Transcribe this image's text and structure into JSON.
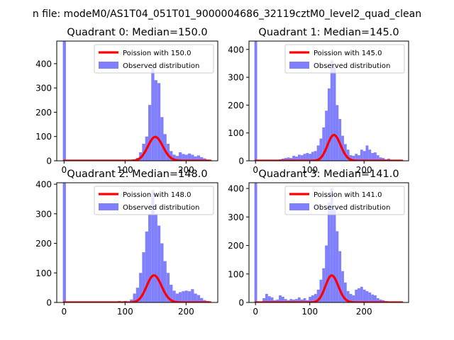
{
  "figure": {
    "suptitle": "n file: modeM0/AS1T04_051T01_9000004686_32119cztM0_level2_quad_clean"
  },
  "colors": {
    "poisson_line": "#ff0000",
    "observed_bars": "#8080ff",
    "axes": "#000000",
    "background": "#ffffff"
  },
  "chart_data": [
    {
      "type": "bar",
      "title": "Quadrant 0: Median=150.0",
      "xlim": [
        -12,
        252
      ],
      "ylim": [
        0,
        493
      ],
      "xticks": [
        0,
        100,
        200
      ],
      "yticks": [
        0,
        100,
        200,
        300,
        400
      ],
      "legend_placement": "upper-right",
      "series": [
        {
          "name": "Poission with 150.0",
          "kind": "line",
          "color": "#ff0000",
          "lambda": 150.0,
          "scale": 3020,
          "x_range": [
            0,
            240
          ]
        },
        {
          "name": "Observed distribution",
          "kind": "hist",
          "color": "#8080ff",
          "bins": [
            [
              -2,
              3,
              493
            ],
            [
              3,
              8,
              0
            ],
            [
              83,
              88,
              1
            ],
            [
              103,
              108,
              1
            ],
            [
              113,
              118,
              3
            ],
            [
              118,
              123,
              12
            ],
            [
              123,
              128,
              35
            ],
            [
              128,
              133,
              70
            ],
            [
              133,
              138,
              100
            ],
            [
              138,
              143,
              230
            ],
            [
              143,
              148,
              390
            ],
            [
              148,
              153,
              332
            ],
            [
              153,
              158,
              320
            ],
            [
              158,
              163,
              180
            ],
            [
              163,
              168,
              110
            ],
            [
              168,
              173,
              70
            ],
            [
              173,
              178,
              40
            ],
            [
              178,
              183,
              25
            ],
            [
              183,
              188,
              20
            ],
            [
              188,
              193,
              35
            ],
            [
              193,
              198,
              28
            ],
            [
              198,
              203,
              25
            ],
            [
              203,
              208,
              30
            ],
            [
              208,
              213,
              25
            ],
            [
              213,
              218,
              18
            ],
            [
              218,
              223,
              22
            ],
            [
              223,
              228,
              15
            ],
            [
              228,
              233,
              10
            ],
            [
              233,
              238,
              5
            ],
            [
              238,
              243,
              2
            ]
          ]
        }
      ]
    },
    {
      "type": "bar",
      "title": "Quadrant 1: Median=145.0",
      "xlim": [
        -12,
        282
      ],
      "ylim": [
        0,
        430
      ],
      "xticks": [
        0,
        100,
        200
      ],
      "yticks": [
        0,
        100,
        200,
        300,
        400
      ],
      "legend_placement": "upper-right",
      "series": [
        {
          "name": "Poission with 145.0",
          "kind": "line",
          "color": "#ff0000",
          "lambda": 145.0,
          "scale": 2800,
          "x_range": [
            0,
            270
          ]
        },
        {
          "name": "Observed distribution",
          "kind": "hist",
          "color": "#8080ff",
          "bins": [
            [
              -2,
              3,
              430
            ],
            [
              43,
              48,
              5
            ],
            [
              48,
              53,
              8
            ],
            [
              53,
              58,
              10
            ],
            [
              58,
              63,
              12
            ],
            [
              63,
              68,
              10
            ],
            [
              68,
              73,
              18
            ],
            [
              73,
              78,
              15
            ],
            [
              78,
              83,
              22
            ],
            [
              83,
              88,
              20
            ],
            [
              88,
              93,
              25
            ],
            [
              93,
              98,
              28
            ],
            [
              98,
              103,
              25
            ],
            [
              103,
              108,
              32
            ],
            [
              108,
              113,
              35
            ],
            [
              113,
              118,
              55
            ],
            [
              118,
              123,
              80
            ],
            [
              123,
              128,
              120
            ],
            [
              128,
              133,
              180
            ],
            [
              133,
              138,
              260
            ],
            [
              138,
              143,
              360
            ],
            [
              143,
              148,
              340
            ],
            [
              148,
              153,
              200
            ],
            [
              153,
              158,
              150
            ],
            [
              158,
              163,
              90
            ],
            [
              163,
              168,
              60
            ],
            [
              168,
              173,
              40
            ],
            [
              173,
              178,
              20
            ],
            [
              178,
              183,
              18
            ],
            [
              183,
              188,
              25
            ],
            [
              188,
              193,
              20
            ],
            [
              193,
              198,
              40
            ],
            [
              198,
              203,
              35
            ],
            [
              203,
              208,
              55
            ],
            [
              208,
              213,
              40
            ],
            [
              213,
              218,
              28
            ],
            [
              218,
              223,
              30
            ],
            [
              223,
              228,
              20
            ],
            [
              228,
              233,
              12
            ],
            [
              233,
              238,
              10
            ],
            [
              238,
              243,
              5
            ],
            [
              243,
              248,
              8
            ],
            [
              248,
              253,
              4
            ]
          ]
        }
      ]
    },
    {
      "type": "bar",
      "title": "Quadrant 2: Median=148.0",
      "xlim": [
        -12,
        252
      ],
      "ylim": [
        0,
        405
      ],
      "xticks": [
        0,
        100,
        200
      ],
      "yticks": [
        0,
        100,
        200,
        300,
        400
      ],
      "legend_placement": "upper-right",
      "series": [
        {
          "name": "Poission with 148.0",
          "kind": "line",
          "color": "#ff0000",
          "lambda": 148.0,
          "scale": 2800,
          "x_range": [
            0,
            240
          ]
        },
        {
          "name": "Observed distribution",
          "kind": "hist",
          "color": "#8080ff",
          "bins": [
            [
              -2,
              3,
              405
            ],
            [
              48,
              53,
              2
            ],
            [
              73,
              78,
              3
            ],
            [
              88,
              93,
              5
            ],
            [
              98,
              103,
              5
            ],
            [
              108,
              113,
              10
            ],
            [
              113,
              118,
              30
            ],
            [
              118,
              123,
              50
            ],
            [
              123,
              128,
              100
            ],
            [
              128,
              133,
              170
            ],
            [
              133,
              138,
              240
            ],
            [
              138,
              143,
              300
            ],
            [
              143,
              148,
              380
            ],
            [
              148,
              153,
              300
            ],
            [
              153,
              158,
              260
            ],
            [
              158,
              163,
              200
            ],
            [
              163,
              168,
              140
            ],
            [
              168,
              173,
              100
            ],
            [
              173,
              178,
              60
            ],
            [
              178,
              183,
              40
            ],
            [
              183,
              188,
              30
            ],
            [
              188,
              193,
              35
            ],
            [
              193,
              198,
              38
            ],
            [
              198,
              203,
              40
            ],
            [
              203,
              208,
              38
            ],
            [
              208,
              213,
              45
            ],
            [
              213,
              218,
              30
            ],
            [
              218,
              223,
              25
            ],
            [
              223,
              228,
              15
            ],
            [
              228,
              233,
              8
            ],
            [
              233,
              238,
              5
            ]
          ]
        }
      ]
    },
    {
      "type": "bar",
      "title": "Quadrant 3: Median=141.0",
      "xlim": [
        -12,
        282
      ],
      "ylim": [
        0,
        420
      ],
      "xticks": [
        0,
        100,
        200
      ],
      "yticks": [
        0,
        100,
        200,
        300,
        400
      ],
      "legend_placement": "upper-right",
      "series": [
        {
          "name": "Poission with 141.0",
          "kind": "line",
          "color": "#ff0000",
          "lambda": 141.0,
          "scale": 2820,
          "x_range": [
            0,
            270
          ]
        },
        {
          "name": "Observed distribution",
          "kind": "hist",
          "color": "#8080ff",
          "bins": [
            [
              -2,
              3,
              420
            ],
            [
              13,
              18,
              15
            ],
            [
              18,
              23,
              30
            ],
            [
              23,
              28,
              22
            ],
            [
              28,
              33,
              18
            ],
            [
              33,
              38,
              8
            ],
            [
              38,
              43,
              10
            ],
            [
              43,
              48,
              25
            ],
            [
              48,
              53,
              20
            ],
            [
              53,
              58,
              12
            ],
            [
              58,
              63,
              8
            ],
            [
              63,
              68,
              12
            ],
            [
              68,
              73,
              10
            ],
            [
              73,
              78,
              12
            ],
            [
              78,
              83,
              18
            ],
            [
              83,
              88,
              10
            ],
            [
              88,
              93,
              15
            ],
            [
              93,
              98,
              8
            ],
            [
              98,
              103,
              20
            ],
            [
              103,
              108,
              25
            ],
            [
              108,
              113,
              30
            ],
            [
              113,
              118,
              45
            ],
            [
              118,
              123,
              80
            ],
            [
              123,
              128,
              120
            ],
            [
              128,
              133,
              200
            ],
            [
              133,
              138,
              350
            ],
            [
              138,
              143,
              400
            ],
            [
              143,
              148,
              330
            ],
            [
              148,
              153,
              250
            ],
            [
              153,
              158,
              180
            ],
            [
              158,
              163,
              110
            ],
            [
              163,
              168,
              70
            ],
            [
              168,
              173,
              40
            ],
            [
              173,
              178,
              30
            ],
            [
              178,
              183,
              25
            ],
            [
              183,
              188,
              45
            ],
            [
              188,
              193,
              50
            ],
            [
              193,
              198,
              55
            ],
            [
              198,
              203,
              45
            ],
            [
              203,
              208,
              40
            ],
            [
              208,
              213,
              35
            ],
            [
              213,
              218,
              28
            ],
            [
              218,
              223,
              25
            ],
            [
              223,
              228,
              15
            ],
            [
              228,
              233,
              10
            ],
            [
              233,
              238,
              8
            ],
            [
              238,
              243,
              5
            ]
          ]
        }
      ]
    }
  ]
}
